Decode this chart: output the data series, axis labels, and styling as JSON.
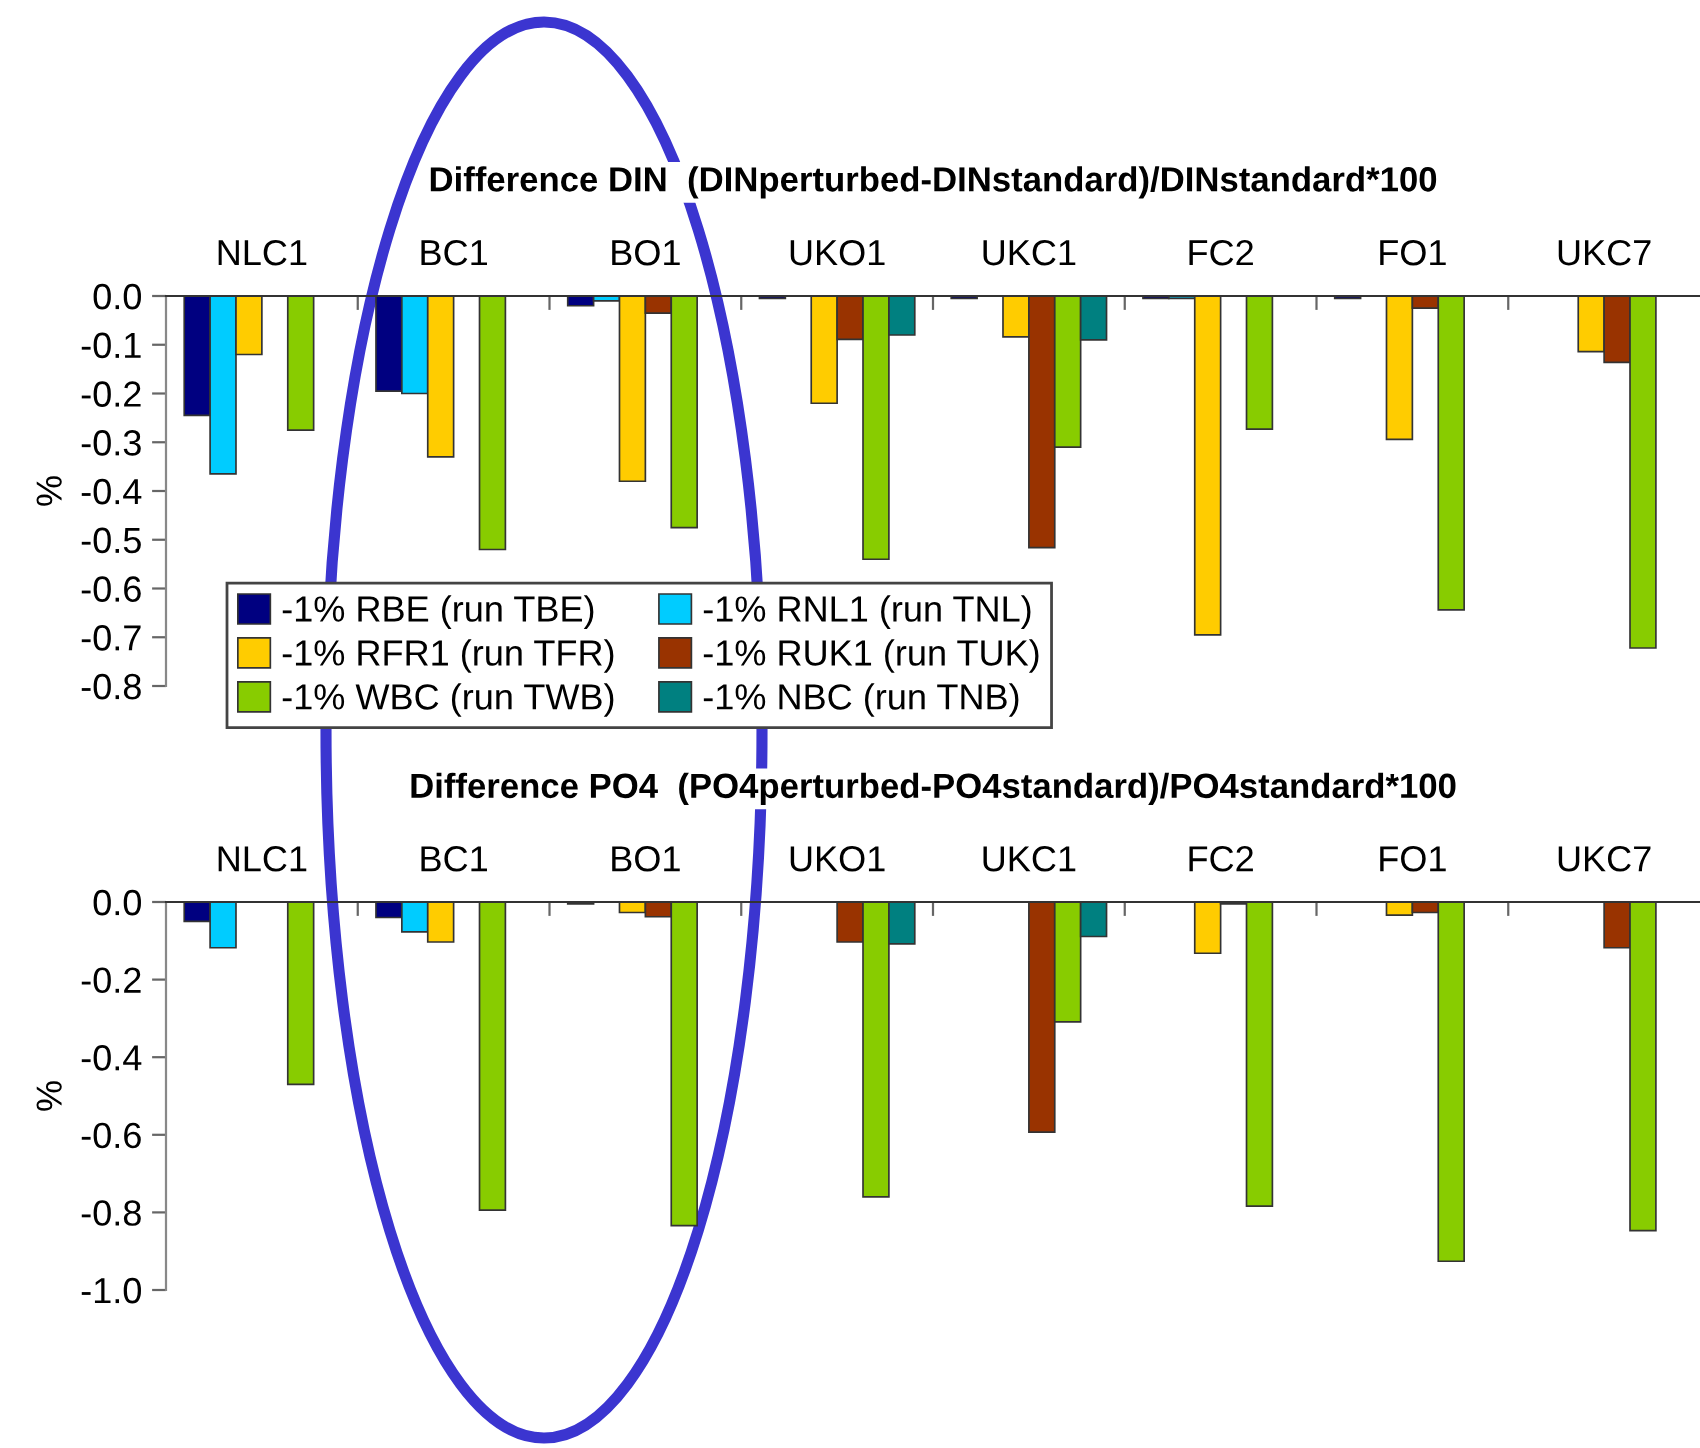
{
  "chart_data": [
    {
      "type": "bar",
      "title": "Difference DIN  (DINperturbed-DINstandard)/DINstandard*100",
      "ylabel": "%",
      "categories": [
        "NLC1",
        "BC1",
        "BO1",
        "UKO1",
        "UKC1",
        "FC2",
        "FO1",
        "UKC7"
      ],
      "series": [
        {
          "name": "-1% RBE (run TBE)",
          "color": "#000080",
          "values": [
            -0.245,
            -0.195,
            -0.02,
            -0.005,
            -0.005,
            -0.005,
            -0.005,
            null
          ]
        },
        {
          "name": "-1% RNL1 (run TNL)",
          "color": "#00ccff",
          "values": [
            -0.365,
            -0.2,
            -0.01,
            null,
            null,
            -0.005,
            null,
            null
          ]
        },
        {
          "name": "-1% RFR1 (run TFR)",
          "color": "#ffcc00",
          "values": [
            -0.12,
            -0.33,
            -0.38,
            -0.22,
            -0.084,
            -0.695,
            -0.294,
            -0.114
          ]
        },
        {
          "name": "-1% RUK1 (run TUK)",
          "color": "#993300",
          "values": [
            null,
            null,
            -0.035,
            -0.089,
            -0.516,
            null,
            -0.025,
            -0.136
          ]
        },
        {
          "name": "-1% WBC (run TWB)",
          "color": "#88cc00",
          "values": [
            -0.275,
            -0.52,
            -0.475,
            -0.54,
            -0.31,
            -0.273,
            -0.644,
            -0.722
          ]
        },
        {
          "name": "-1% NBC (run TNB)",
          "color": "#008080",
          "values": [
            null,
            null,
            null,
            -0.08,
            -0.09,
            null,
            null,
            null
          ]
        }
      ],
      "ylim": [
        -0.8,
        0
      ],
      "yticks": [
        {
          "value": 0,
          "label": "0.0"
        },
        {
          "value": -0.1,
          "label": "-0.1"
        },
        {
          "value": -0.2,
          "label": "-0.2"
        },
        {
          "value": -0.3,
          "label": "-0.3"
        },
        {
          "value": -0.4,
          "label": "-0.4"
        },
        {
          "value": -0.5,
          "label": "-0.5"
        },
        {
          "value": -0.6,
          "label": "-0.6"
        },
        {
          "value": -0.7,
          "label": "-0.7"
        },
        {
          "value": -0.8,
          "label": "-0.8"
        }
      ],
      "legend": "bottom left"
    },
    {
      "type": "bar",
      "title": "Difference PO4  (PO4perturbed-PO4standard)/PO4standard*100",
      "ylabel": "%",
      "categories": [
        "NLC1",
        "BC1",
        "BO1",
        "UKO1",
        "UKC1",
        "FC2",
        "FO1",
        "UKC7"
      ],
      "series": [
        {
          "color": "#000080",
          "values": [
            -0.05,
            -0.04,
            -0.005,
            null,
            null,
            null,
            null,
            null
          ]
        },
        {
          "color": "#00ccff",
          "values": [
            -0.118,
            -0.077,
            null,
            null,
            null,
            null,
            null,
            null
          ]
        },
        {
          "color": "#ffcc00",
          "values": [
            null,
            -0.103,
            -0.027,
            null,
            null,
            -0.132,
            -0.034,
            null
          ]
        },
        {
          "color": "#993300",
          "values": [
            null,
            null,
            -0.038,
            -0.103,
            -0.593,
            -0.005,
            -0.027,
            -0.118
          ]
        },
        {
          "color": "#88cc00",
          "values": [
            -0.47,
            -0.794,
            -0.834,
            -0.76,
            -0.309,
            -0.784,
            -0.926,
            -0.847
          ]
        },
        {
          "color": "#008080",
          "values": [
            null,
            null,
            null,
            -0.108,
            -0.089,
            null,
            null,
            null
          ]
        }
      ],
      "ylim": [
        -1.0,
        0
      ],
      "yticks": [
        {
          "value": 0,
          "label": "0.0"
        },
        {
          "value": -0.2,
          "label": "-0.2"
        },
        {
          "value": -0.4,
          "label": "-0.4"
        },
        {
          "value": -0.6,
          "label": "-0.6"
        },
        {
          "value": -0.8,
          "label": "-0.8"
        },
        {
          "value": -1.0,
          "label": "-1.0"
        }
      ]
    }
  ]
}
